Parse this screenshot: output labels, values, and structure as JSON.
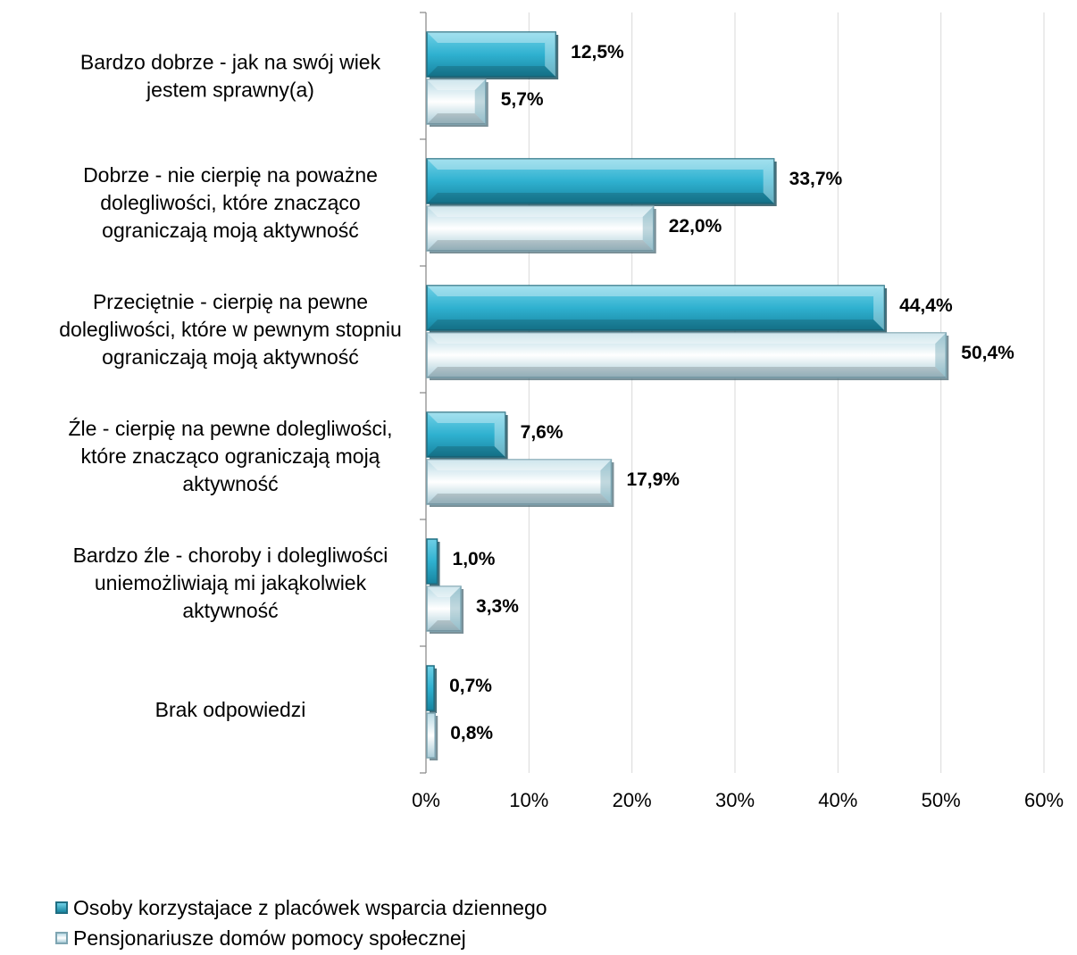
{
  "chart_data": {
    "type": "bar",
    "orientation": "horizontal",
    "categories": [
      [
        "Bardzo dobrze - jak na swój wiek",
        "jestem sprawny(a)"
      ],
      [
        "Dobrze - nie cierpię na poważne",
        "dolegliwości, które znacząco",
        "ograniczają moją aktywność"
      ],
      [
        "Przeciętnie - cierpię na pewne",
        "dolegliwości, które w pewnym stopniu",
        "ograniczają moją aktywność"
      ],
      [
        "Źle - cierpię na pewne dolegliwości,",
        "które znacząco ograniczają moją",
        "aktywność"
      ],
      [
        "Bardzo źle - choroby i dolegliwości",
        "uniemożliwiają mi jakąkolwiek",
        "aktywność"
      ],
      [
        "Brak odpowiedzi"
      ]
    ],
    "series": [
      {
        "name": "Osoby korzystajace z placówek wsparcia dziennego",
        "values": [
          12.5,
          33.7,
          44.4,
          7.6,
          1.0,
          0.7
        ],
        "labels": [
          "12,5%",
          "33,7%",
          "44,4%",
          "7,6%",
          "1,0%",
          "0,7%"
        ],
        "color": "#2aa9c9"
      },
      {
        "name": "Pensjonariusze domów pomocy społecznej",
        "values": [
          5.7,
          22.0,
          50.4,
          17.9,
          3.3,
          0.8
        ],
        "labels": [
          "5,7%",
          "22,0%",
          "50,4%",
          "17,9%",
          "3,3%",
          "0,8%"
        ],
        "color": "#cfe6ee"
      }
    ],
    "x_ticks": [
      "0%",
      "10%",
      "20%",
      "30%",
      "40%",
      "50%",
      "60%"
    ],
    "xlim": [
      0,
      60
    ],
    "grid": true,
    "legend_position": "bottom-left"
  }
}
